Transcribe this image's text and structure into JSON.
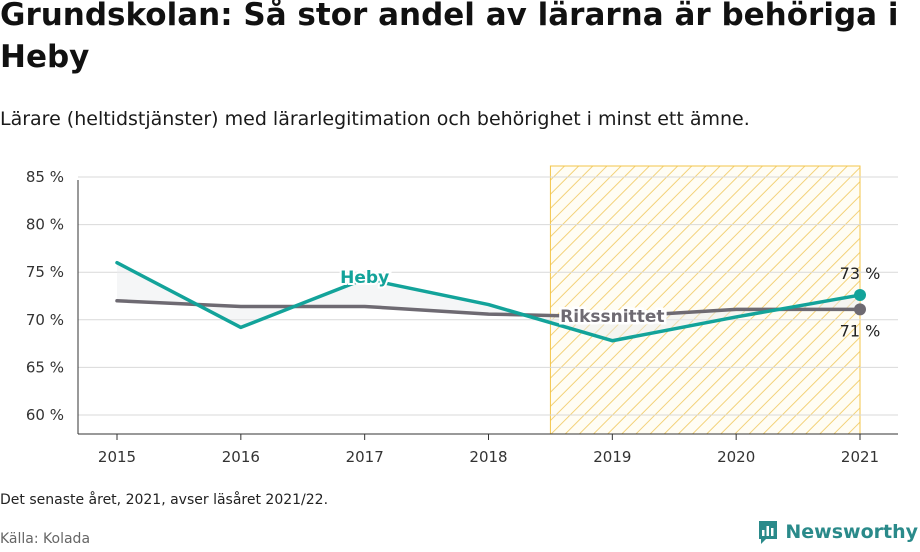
{
  "header": {
    "title": "Grundskolan: Så stor andel av lärarna är behöriga i Heby",
    "subtitle": "Lärare (heltidstjänster) med lärarlegitimation och behörighet i minst ett ämne."
  },
  "footer": {
    "note": "Det senaste året, 2021, avser läsåret 2021/22.",
    "source": "Källa: Kolada",
    "brand": "Newsworthy"
  },
  "colors": {
    "heby": "#13a39a",
    "riket": "#6e6a72",
    "highlight": "#f3c54a",
    "grid": "#d9d9d9"
  },
  "chart_data": {
    "type": "line",
    "x": [
      2015,
      2016,
      2017,
      2018,
      2019,
      2020,
      2021
    ],
    "x_tick_labels": [
      "2015",
      "2016",
      "2017",
      "2018",
      "2019",
      "2020",
      "2021"
    ],
    "ylim": [
      58,
      87
    ],
    "y_ticks": [
      60,
      65,
      70,
      75,
      80,
      85
    ],
    "y_tick_labels": [
      "60 %",
      "65 %",
      "70 %",
      "75 %",
      "80 %",
      "85 %"
    ],
    "grid": true,
    "highlight_range": [
      2018.5,
      2021
    ],
    "series": [
      {
        "name": "Heby",
        "color": "#13a39a",
        "values": [
          76.0,
          69.2,
          74.3,
          71.6,
          67.8,
          70.3,
          72.6
        ],
        "end_label": "73 %"
      },
      {
        "name": "Rikssnittet",
        "color": "#6e6a72",
        "values": [
          72.0,
          71.4,
          71.4,
          70.6,
          70.3,
          71.1,
          71.1
        ],
        "end_label": "71 %"
      }
    ]
  }
}
